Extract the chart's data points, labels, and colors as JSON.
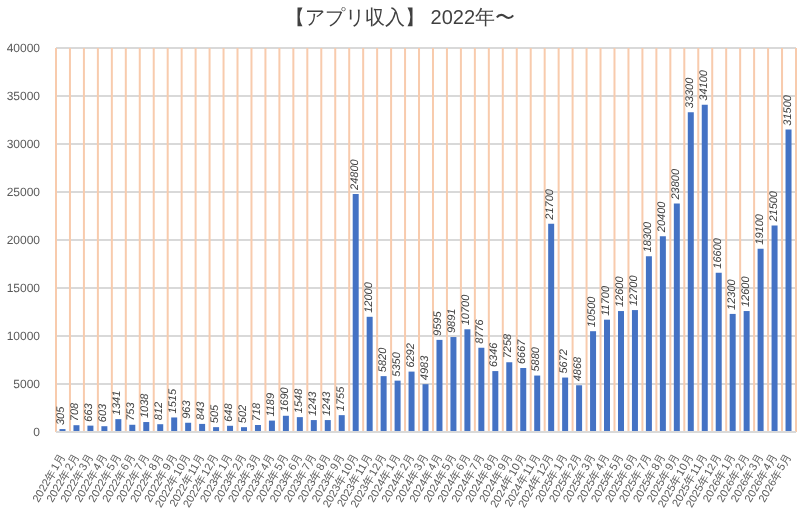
{
  "chart_data": {
    "type": "bar",
    "title": "【アプリ収入】 2022年〜",
    "categories": [
      "2022年1月",
      "2022年2月",
      "2022年3月",
      "2022年4月",
      "2022年5月",
      "2022年6月",
      "2022年7月",
      "2022年8月",
      "2022年9月",
      "2022年10月",
      "2022年11月",
      "2022年12月",
      "2023年1月",
      "2023年2月",
      "2023年3月",
      "2023年4月",
      "2023年5月",
      "2023年6月",
      "2023年7月",
      "2023年8月",
      "2023年9月",
      "2023年10月",
      "2023年11月",
      "2023年12月",
      "2024年1月",
      "2024年2月",
      "2024年3月",
      "2024年4月",
      "2024年5月",
      "2024年6月",
      "2024年7月",
      "2024年8月",
      "2024年9月",
      "2024年10月",
      "2024年11月",
      "2024年12月",
      "2025年1月",
      "2025年2月",
      "2025年3月",
      "2025年4月",
      "2025年5月",
      "2025年6月",
      "2025年7月",
      "2025年8月",
      "2025年9月",
      "2025年10月",
      "2025年11月",
      "2025年12月",
      "2026年1月",
      "2026年2月",
      "2026年3月",
      "2026年4月",
      "2026年5月"
    ],
    "values": [
      305,
      708,
      663,
      603,
      1341,
      753,
      1038,
      812,
      1515,
      963,
      843,
      505,
      648,
      502,
      718,
      1189,
      1690,
      1548,
      1243,
      1243,
      1755,
      24800,
      12000,
      5820,
      5350,
      6292,
      4983,
      9595,
      9891,
      10700,
      8776,
      6346,
      7258,
      6667,
      5880,
      21700,
      5672,
      4868,
      10500,
      11700,
      12600,
      12700,
      18300,
      20400,
      23800,
      33300,
      34100,
      16600,
      12300,
      12600,
      19100,
      21500,
      31500
    ],
    "color": "#4472c4",
    "ylim": [
      0,
      40000
    ],
    "yticks": [
      0,
      5000,
      10000,
      15000,
      20000,
      25000,
      30000,
      35000,
      40000
    ],
    "grid": true,
    "data_labels": true
  }
}
